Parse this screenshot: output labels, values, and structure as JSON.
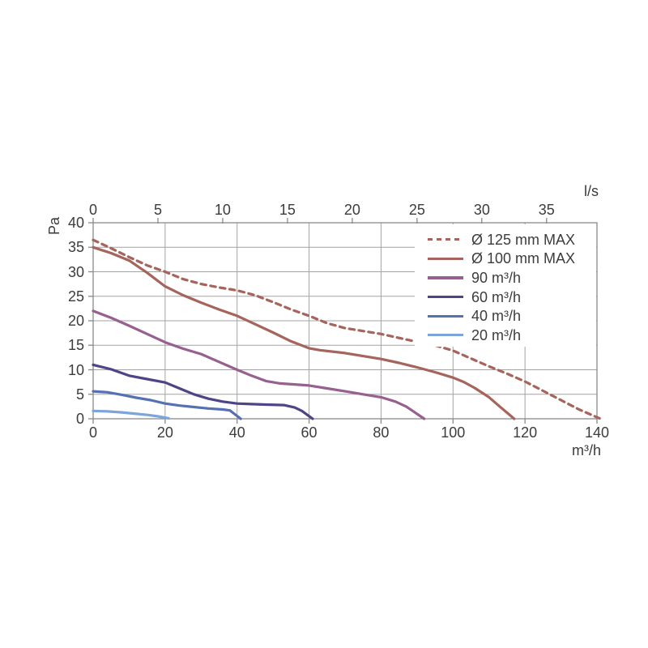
{
  "chart_data": {
    "type": "line",
    "title": "",
    "ylabel": "Pa",
    "xlabel_bottom": "m³/h",
    "xlabel_top": "l/s",
    "grid": true,
    "legend_position": "top-right",
    "axes": {
      "left": {
        "label": "Pa",
        "ticks": [
          0,
          5,
          10,
          15,
          20,
          25,
          30,
          35,
          40
        ],
        "range": [
          0,
          40
        ]
      },
      "bottom": {
        "label": "m³/h",
        "ticks": [
          0,
          20,
          40,
          60,
          80,
          100,
          120,
          140
        ],
        "range": [
          0,
          140
        ]
      },
      "top": {
        "label": "l/s",
        "ticks": [
          0,
          5,
          10,
          15,
          20,
          25,
          30,
          35
        ],
        "unit_to_bottom": 3.6
      }
    },
    "colors": {
      "background": "#FFFFFF",
      "grid": "#A3A3A3",
      "axis": "#8A8A8A",
      "text": "#3C3C3C"
    },
    "series": [
      {
        "name": "Ø 125 mm MAX",
        "color": "#A5645C",
        "dash": true,
        "points": [
          [
            0,
            36.5
          ],
          [
            5,
            34.8
          ],
          [
            10,
            33.0
          ],
          [
            15,
            31.3
          ],
          [
            20,
            30.0
          ],
          [
            25,
            28.5
          ],
          [
            30,
            27.5
          ],
          [
            35,
            26.8
          ],
          [
            40,
            26.2
          ],
          [
            45,
            25.2
          ],
          [
            50,
            23.8
          ],
          [
            55,
            22.3
          ],
          [
            60,
            21.0
          ],
          [
            65,
            19.5
          ],
          [
            70,
            18.5
          ],
          [
            75,
            17.9
          ],
          [
            80,
            17.3
          ],
          [
            85,
            16.5
          ],
          [
            90,
            15.7
          ],
          [
            95,
            15.0
          ],
          [
            100,
            13.9
          ],
          [
            105,
            12.3
          ],
          [
            110,
            10.7
          ],
          [
            115,
            9.2
          ],
          [
            120,
            7.6
          ],
          [
            125,
            5.7
          ],
          [
            130,
            3.8
          ],
          [
            135,
            1.9
          ],
          [
            141,
            0
          ]
        ]
      },
      {
        "name": "Ø 100 mm MAX",
        "color": "#A5645C",
        "dash": false,
        "points": [
          [
            0,
            35.0
          ],
          [
            5,
            33.8
          ],
          [
            10,
            32.3
          ],
          [
            15,
            29.8
          ],
          [
            20,
            27.0
          ],
          [
            25,
            25.2
          ],
          [
            30,
            23.7
          ],
          [
            35,
            22.3
          ],
          [
            40,
            21.0
          ],
          [
            45,
            19.3
          ],
          [
            50,
            17.6
          ],
          [
            55,
            15.8
          ],
          [
            60,
            14.4
          ],
          [
            63,
            14.0
          ],
          [
            70,
            13.4
          ],
          [
            75,
            12.8
          ],
          [
            80,
            12.2
          ],
          [
            85,
            11.4
          ],
          [
            90,
            10.5
          ],
          [
            95,
            9.5
          ],
          [
            100,
            8.4
          ],
          [
            103,
            7.5
          ],
          [
            106,
            6.3
          ],
          [
            110,
            4.4
          ],
          [
            113,
            2.5
          ],
          [
            117,
            0
          ]
        ]
      },
      {
        "name": "90 m³/h",
        "color": "#97608F",
        "dash": false,
        "points": [
          [
            0,
            22.0
          ],
          [
            5,
            20.6
          ],
          [
            10,
            19.0
          ],
          [
            15,
            17.3
          ],
          [
            20,
            15.6
          ],
          [
            25,
            14.3
          ],
          [
            30,
            13.2
          ],
          [
            35,
            11.6
          ],
          [
            40,
            10.0
          ],
          [
            44,
            8.8
          ],
          [
            48,
            7.7
          ],
          [
            52,
            7.2
          ],
          [
            56,
            7.0
          ],
          [
            60,
            6.8
          ],
          [
            65,
            6.2
          ],
          [
            70,
            5.6
          ],
          [
            75,
            5.0
          ],
          [
            80,
            4.4
          ],
          [
            84,
            3.5
          ],
          [
            87,
            2.5
          ],
          [
            92,
            0
          ]
        ]
      },
      {
        "name": "60 m³/h",
        "color": "#4E4486",
        "dash": false,
        "points": [
          [
            0,
            11.0
          ],
          [
            5,
            10.1
          ],
          [
            10,
            8.8
          ],
          [
            15,
            8.1
          ],
          [
            20,
            7.4
          ],
          [
            24,
            6.2
          ],
          [
            28,
            5.0
          ],
          [
            32,
            4.1
          ],
          [
            36,
            3.5
          ],
          [
            40,
            3.1
          ],
          [
            44,
            3.0
          ],
          [
            48,
            2.9
          ],
          [
            53,
            2.8
          ],
          [
            56,
            2.3
          ],
          [
            58,
            1.6
          ],
          [
            61,
            0
          ]
        ]
      },
      {
        "name": "40 m³/h",
        "color": "#5571B2",
        "dash": false,
        "points": [
          [
            0,
            5.6
          ],
          [
            4,
            5.4
          ],
          [
            8,
            4.9
          ],
          [
            12,
            4.3
          ],
          [
            16,
            3.8
          ],
          [
            20,
            3.1
          ],
          [
            24,
            2.7
          ],
          [
            28,
            2.4
          ],
          [
            32,
            2.1
          ],
          [
            36,
            1.9
          ],
          [
            38,
            1.7
          ],
          [
            41,
            0
          ]
        ]
      },
      {
        "name": "20 m³/h",
        "color": "#7CA5DC",
        "dash": false,
        "points": [
          [
            0,
            1.6
          ],
          [
            4,
            1.5
          ],
          [
            8,
            1.3
          ],
          [
            12,
            1.0
          ],
          [
            15,
            0.8
          ],
          [
            18,
            0.5
          ],
          [
            21,
            0.1
          ]
        ]
      }
    ]
  }
}
